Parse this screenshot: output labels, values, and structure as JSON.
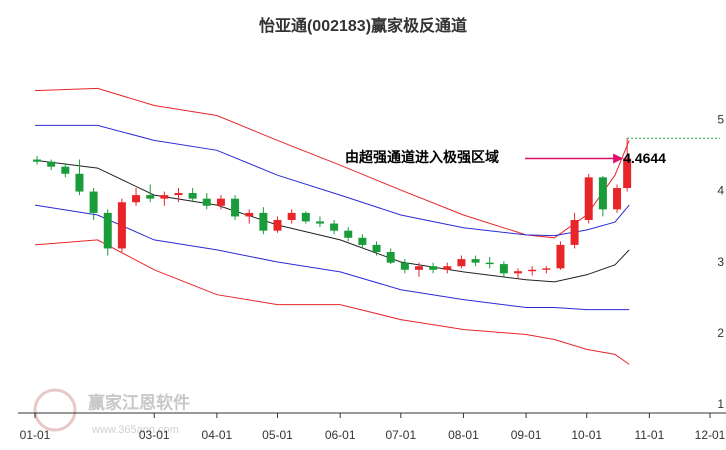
{
  "chart_data": {
    "type": "candlestick",
    "title": "怡亚通(002183)赢家极反通道",
    "annotation": "由超强通道进入极强区域",
    "watermark": "赢家江恩软件",
    "watermark_url": "www.365ann.com",
    "xlim": [
      "01-01",
      "12-01"
    ],
    "xticks": [
      "01-01",
      "03-01",
      "04-01",
      "05-01",
      "06-01",
      "07-01",
      "08-01",
      "09-01",
      "10-01",
      "11-01",
      "12-01"
    ],
    "ylim": [
      0.9,
      5.85
    ],
    "yticks": [
      1,
      2,
      3,
      4,
      5
    ],
    "up_color": "#e8262a",
    "down_color": "#1a9c3a",
    "last_line_color": "#1a9c3a",
    "annotation_color": "#e0106a",
    "candles": {
      "x": [
        "01-02",
        "01-09",
        "01-16",
        "01-23",
        "01-30",
        "02-06",
        "02-13",
        "02-20",
        "02-27",
        "03-06",
        "03-13",
        "03-20",
        "03-27",
        "04-03",
        "04-10",
        "04-17",
        "04-24",
        "05-01",
        "05-08",
        "05-15",
        "05-22",
        "05-29",
        "06-05",
        "06-12",
        "06-19",
        "06-26",
        "07-03",
        "07-10",
        "07-17",
        "07-24",
        "07-31",
        "08-07",
        "08-14",
        "08-21",
        "08-28",
        "09-04",
        "09-11",
        "09-18",
        "09-25",
        "10-02",
        "10-09",
        "10-16",
        "10-21"
      ],
      "open": [
        4.45,
        4.42,
        4.35,
        4.25,
        4.0,
        3.7,
        3.2,
        3.85,
        3.95,
        3.9,
        3.95,
        3.98,
        3.9,
        3.8,
        3.9,
        3.65,
        3.7,
        3.45,
        3.6,
        3.7,
        3.58,
        3.55,
        3.45,
        3.35,
        3.25,
        3.15,
        3.0,
        2.9,
        2.95,
        2.9,
        2.95,
        3.05,
        3.0,
        2.98,
        2.85,
        2.88,
        2.9,
        2.92,
        3.25,
        3.6,
        4.2,
        3.75,
        4.05
      ],
      "high": [
        4.5,
        4.45,
        4.4,
        4.45,
        4.05,
        3.75,
        3.9,
        4.05,
        4.1,
        4.0,
        4.05,
        4.05,
        3.98,
        3.95,
        3.95,
        3.75,
        3.78,
        3.65,
        3.75,
        3.72,
        3.65,
        3.6,
        3.5,
        3.4,
        3.3,
        3.2,
        3.05,
        3.0,
        3.0,
        3.0,
        3.1,
        3.1,
        3.08,
        3.02,
        2.92,
        2.95,
        2.95,
        3.3,
        3.7,
        4.25,
        4.22,
        4.1,
        4.75
      ],
      "low": [
        4.38,
        4.3,
        4.2,
        3.95,
        3.6,
        3.1,
        3.15,
        3.8,
        3.85,
        3.8,
        3.85,
        3.85,
        3.75,
        3.75,
        3.6,
        3.55,
        3.4,
        3.42,
        3.55,
        3.55,
        3.5,
        3.4,
        3.3,
        3.2,
        3.1,
        2.98,
        2.85,
        2.8,
        2.85,
        2.85,
        2.92,
        2.95,
        2.92,
        2.8,
        2.78,
        2.82,
        2.85,
        2.9,
        3.2,
        3.55,
        3.65,
        3.7,
        4.0
      ],
      "close": [
        4.42,
        4.35,
        4.25,
        4.0,
        3.7,
        3.2,
        3.85,
        3.95,
        3.9,
        3.95,
        3.98,
        3.9,
        3.8,
        3.9,
        3.65,
        3.7,
        3.45,
        3.6,
        3.7,
        3.58,
        3.55,
        3.45,
        3.35,
        3.25,
        3.15,
        3.0,
        2.9,
        2.95,
        2.9,
        2.95,
        3.05,
        3.0,
        2.98,
        2.85,
        2.88,
        2.9,
        2.92,
        3.25,
        3.6,
        4.2,
        3.75,
        4.05,
        4.4644
      ]
    },
    "series": [
      {
        "color": "#e8262a",
        "x": [
          "01-01",
          "02-01",
          "03-01",
          "04-01",
          "05-01",
          "06-01",
          "07-01",
          "08-01",
          "09-01",
          "09-15",
          "10-01",
          "10-15",
          "10-22"
        ],
        "values": [
          5.42,
          5.45,
          5.21,
          5.07,
          4.72,
          4.37,
          4.02,
          3.67,
          3.39,
          3.35,
          3.67,
          4.23,
          4.72
        ]
      },
      {
        "color": "#2b2bd6",
        "x": [
          "01-01",
          "02-01",
          "03-01",
          "04-01",
          "05-01",
          "06-01",
          "07-01",
          "08-01",
          "09-01",
          "09-15",
          "10-01",
          "10-15",
          "10-22"
        ],
        "values": [
          4.93,
          4.93,
          4.72,
          4.58,
          4.23,
          3.95,
          3.67,
          3.49,
          3.39,
          3.38,
          3.46,
          3.57,
          3.81
        ]
      },
      {
        "color": "#222222",
        "x": [
          "01-01",
          "02-01",
          "03-01",
          "04-01",
          "05-01",
          "06-01",
          "07-01",
          "08-01",
          "09-01",
          "09-15",
          "10-01",
          "10-15",
          "10-22"
        ],
        "values": [
          4.44,
          4.33,
          3.95,
          3.81,
          3.53,
          3.32,
          3.01,
          2.87,
          2.76,
          2.73,
          2.83,
          2.97,
          3.18
        ]
      },
      {
        "color": "#2b2bd6",
        "x": [
          "01-01",
          "02-01",
          "03-01",
          "04-01",
          "05-01",
          "06-01",
          "07-01",
          "08-01",
          "09-01",
          "09-15",
          "10-01",
          "10-15",
          "10-22"
        ],
        "values": [
          3.81,
          3.67,
          3.32,
          3.18,
          3.01,
          2.87,
          2.62,
          2.48,
          2.37,
          2.37,
          2.34,
          2.34,
          2.34
        ]
      },
      {
        "color": "#e8262a",
        "x": [
          "01-01",
          "02-01",
          "03-01",
          "04-01",
          "05-01",
          "06-01",
          "07-01",
          "08-01",
          "09-01",
          "09-15",
          "10-01",
          "10-15",
          "10-22"
        ],
        "values": [
          3.25,
          3.32,
          2.9,
          2.55,
          2.41,
          2.41,
          2.2,
          2.06,
          1.99,
          1.92,
          1.78,
          1.71,
          1.57
        ]
      }
    ]
  }
}
